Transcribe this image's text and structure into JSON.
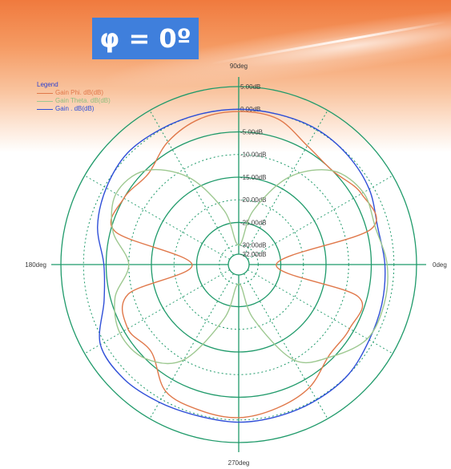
{
  "title_box": "φ = 0º",
  "chart_data": {
    "type": "polar",
    "angle_labels": [
      {
        "deg": 0,
        "label": "0deg"
      },
      {
        "deg": 90,
        "label": "90deg"
      },
      {
        "deg": 180,
        "label": "180deg"
      },
      {
        "deg": 270,
        "label": "270deg"
      }
    ],
    "radial_labels": [
      "5.00dB",
      "0.00dB",
      "-5.00dB",
      "-10.00dB",
      "-15.00dB",
      "-20.00dB",
      "-25.00dB",
      "-30.00dB",
      "-32.00dB"
    ],
    "radial_range": [
      -32,
      5
    ],
    "grid": true,
    "legend_position": "top-left",
    "legend": {
      "title": "Legend",
      "entries": [
        {
          "name": "Gain Phi. dB(dB)",
          "color": "#e0784a"
        },
        {
          "name": "Gain Theta. dB(dB)",
          "color": "#9dc890"
        },
        {
          "name": "Gain . dB(dB)",
          "color": "#2f4fd8"
        }
      ]
    },
    "series": [
      {
        "name": "Gain . dB(dB)",
        "color": "#2f4fd8",
        "theta_deg": [
          0,
          15,
          30,
          45,
          60,
          75,
          90,
          105,
          120,
          135,
          150,
          165,
          180,
          195,
          210,
          225,
          240,
          255,
          270,
          285,
          300,
          315,
          330,
          345
        ],
        "r_db": [
          -2.0,
          -2.5,
          -1.0,
          -0.2,
          0.2,
          0.0,
          0.0,
          0.0,
          0.2,
          0.5,
          -0.5,
          -2.0,
          -4.5,
          -3.5,
          1.0,
          1.5,
          0.8,
          0.3,
          0.5,
          0.3,
          0.2,
          0.0,
          -1.0,
          -1.5
        ]
      },
      {
        "name": "Gain Phi. dB(dB)",
        "color": "#e0784a",
        "theta_deg": [
          0,
          15,
          30,
          45,
          60,
          75,
          90,
          105,
          120,
          135,
          150,
          165,
          180,
          195,
          210,
          225,
          240,
          255,
          270,
          285,
          300,
          315,
          330,
          345
        ],
        "r_db": [
          -26.0,
          -4.0,
          -3.0,
          -5.0,
          -4.0,
          -1.0,
          -0.5,
          -1.0,
          -3.0,
          -6.0,
          -5.0,
          -6.0,
          -24.0,
          -9.0,
          -6.0,
          -7.0,
          -2.0,
          -1.0,
          -0.5,
          -1.5,
          -3.0,
          -6.0,
          -6.0,
          -7.0
        ]
      },
      {
        "name": "Gain Theta. dB(dB)",
        "color": "#9dc890",
        "theta_deg": [
          0,
          15,
          30,
          45,
          60,
          75,
          90,
          105,
          120,
          135,
          150,
          165,
          180,
          195,
          210,
          225,
          240,
          255,
          270,
          285,
          300,
          315,
          330,
          345
        ],
        "r_db": [
          -1.5,
          -3.0,
          -2.5,
          -5.0,
          -12.0,
          -22.0,
          -30.0,
          -22.0,
          -12.0,
          -5.0,
          -3.0,
          -5.5,
          -10.0,
          -6.0,
          -4.0,
          -5.0,
          -10.0,
          -22.0,
          -30.0,
          -22.0,
          -10.0,
          -5.5,
          -1.5,
          -1.0
        ]
      }
    ]
  }
}
